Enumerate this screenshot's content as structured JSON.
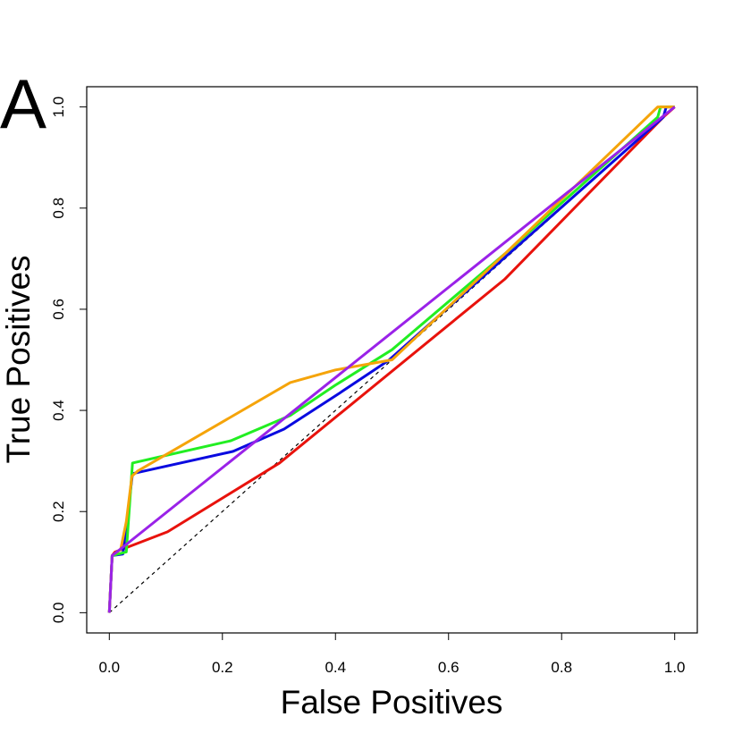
{
  "chart_data": {
    "type": "line",
    "panel_label": "A",
    "x_label": "False Positives",
    "y_label": "True Positives",
    "xlim": [
      -0.04,
      1.04
    ],
    "ylim": [
      -0.04,
      1.04
    ],
    "xticks": [
      {
        "value": 0,
        "label": "0.0"
      },
      0.2,
      0.4,
      0.6,
      0.8,
      {
        "value": 1,
        "label": "1.0"
      }
    ],
    "yticks": [
      {
        "value": 0,
        "label": "0.0"
      },
      0.2,
      0.4,
      0.6,
      0.8,
      {
        "value": 1,
        "label": "1.0"
      }
    ],
    "grid": false,
    "reference_line": {
      "color": "#000000",
      "dashed": true,
      "x": [
        0,
        1
      ],
      "values": [
        0,
        1
      ]
    },
    "series": [
      {
        "color": "#e8120c",
        "x": [
          0,
          0.005,
          0.01,
          0.103,
          0.301,
          0.7,
          0.98,
          1
        ],
        "values": [
          0,
          0.113,
          0.12,
          0.16,
          0.296,
          0.66,
          0.98,
          1
        ]
      },
      {
        "color": "#0a0ae0",
        "x": [
          0,
          0.005,
          0.024,
          0.041,
          0.219,
          0.309,
          0.407,
          0.494,
          0.98,
          0.985,
          1
        ],
        "values": [
          0,
          0.113,
          0.116,
          0.275,
          0.319,
          0.363,
          0.434,
          0.499,
          0.98,
          1,
          1
        ]
      },
      {
        "color": "#22ee22",
        "x": [
          0,
          0.005,
          0.03,
          0.041,
          0.215,
          0.32,
          0.4,
          0.5,
          0.7,
          0.97,
          0.975,
          1
        ],
        "values": [
          0,
          0.113,
          0.12,
          0.296,
          0.34,
          0.39,
          0.45,
          0.52,
          0.71,
          0.98,
          1,
          1
        ]
      },
      {
        "color": "#f5a40a",
        "x": [
          0,
          0.005,
          0.02,
          0.03,
          0.04,
          0.05,
          0.32,
          0.4,
          0.5,
          0.7,
          0.97,
          1
        ],
        "values": [
          0,
          0.113,
          0.125,
          0.18,
          0.27,
          0.28,
          0.455,
          0.48,
          0.5,
          0.71,
          1,
          1
        ]
      },
      {
        "color": "#9a22e8",
        "x": [
          0,
          0.005,
          0.03,
          1
        ],
        "values": [
          0,
          0.113,
          0.135,
          1
        ]
      }
    ]
  }
}
